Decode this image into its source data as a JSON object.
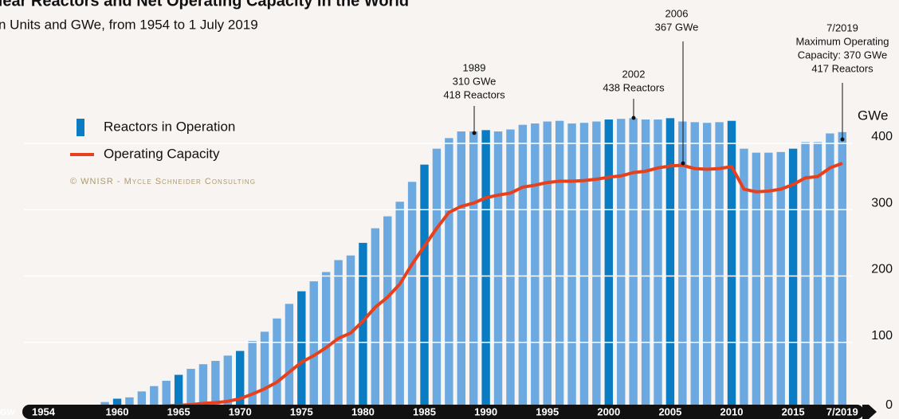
{
  "chart_data": {
    "type": "bar_line",
    "title": "Nuclear Reactors and Net Operating Capacity in the World",
    "subtitle": "n Units and GWe, from 1954 to 1 July 2019",
    "y_label": "GWe",
    "y_label_left": "GW",
    "copyright": "© WNISR - Mycle Schneider Consulting",
    "categories": [
      "1954",
      null,
      null,
      null,
      null,
      null,
      "1960",
      null,
      null,
      null,
      null,
      "1965",
      null,
      null,
      null,
      null,
      "1970",
      null,
      null,
      null,
      null,
      "1975",
      null,
      null,
      null,
      null,
      "1980",
      null,
      null,
      null,
      null,
      "1985",
      null,
      null,
      null,
      null,
      "1990",
      null,
      null,
      null,
      null,
      "1995",
      null,
      null,
      null,
      null,
      "2000",
      null,
      null,
      null,
      null,
      "2005",
      null,
      null,
      null,
      null,
      "2010",
      null,
      null,
      null,
      null,
      "2015",
      null,
      null,
      null,
      "7/2019"
    ],
    "series": [
      {
        "name": "Reactors in Operation",
        "color": "#6ca9e0",
        "colors": [
          "#6ca9e0",
          "#6ca9e0",
          "#6ca9e0",
          "#6ca9e0",
          "#6ca9e0",
          "#6ca9e0",
          "#0a7cc4",
          "#6ca9e0",
          "#6ca9e0",
          "#6ca9e0",
          "#6ca9e0",
          "#0a7cc4",
          "#6ca9e0",
          "#6ca9e0",
          "#6ca9e0",
          "#6ca9e0",
          "#0a7cc4",
          "#6ca9e0",
          "#6ca9e0",
          "#6ca9e0",
          "#6ca9e0",
          "#0a7cc4",
          "#6ca9e0",
          "#6ca9e0",
          "#6ca9e0",
          "#6ca9e0",
          "#0a7cc4",
          "#6ca9e0",
          "#6ca9e0",
          "#6ca9e0",
          "#6ca9e0",
          "#0a7cc4",
          "#6ca9e0",
          "#6ca9e0",
          "#6ca9e0",
          "#6ca9e0",
          "#0a7cc4",
          "#6ca9e0",
          "#6ca9e0",
          "#6ca9e0",
          "#6ca9e0",
          "#6ca9e0",
          "#6ca9e0",
          "#6ca9e0",
          "#6ca9e0",
          "#6ca9e0",
          "#0a7cc4",
          "#6ca9e0",
          "#6ca9e0",
          "#6ca9e0",
          "#6ca9e0",
          "#0a7cc4",
          "#6ca9e0",
          "#6ca9e0",
          "#6ca9e0",
          "#6ca9e0",
          "#0a7cc4",
          "#6ca9e0",
          "#6ca9e0",
          "#6ca9e0",
          "#6ca9e0",
          "#0a7cc4",
          "#6ca9e0",
          "#6ca9e0",
          "#6ca9e0",
          "#6ca9e0"
        ],
        "values": [
          1,
          1,
          2,
          4,
          6,
          10,
          15,
          17,
          26,
          34,
          42,
          51,
          60,
          67,
          72,
          80,
          87,
          102,
          116,
          136,
          158,
          177,
          192,
          206,
          224,
          231,
          250,
          272,
          290,
          312,
          342,
          368,
          392,
          408,
          418,
          418,
          420,
          418,
          421,
          428,
          430,
          433,
          434,
          430,
          431,
          433,
          436,
          437,
          438,
          436,
          436,
          438,
          433,
          432,
          431,
          432,
          434,
          392,
          386,
          386,
          387,
          392,
          402,
          402,
          415,
          417
        ]
      },
      {
        "name": "Operating Capacity",
        "color": "#e8401c",
        "values": [
          0,
          0,
          0,
          0,
          1,
          1,
          1,
          2,
          2,
          3,
          4,
          5,
          6,
          8,
          9,
          11,
          15,
          22,
          30,
          40,
          55,
          70,
          80,
          92,
          106,
          114,
          132,
          153,
          168,
          188,
          218,
          245,
          272,
          296,
          305,
          310,
          318,
          322,
          325,
          334,
          337,
          341,
          343,
          343,
          344,
          346,
          349,
          351,
          356,
          358,
          363,
          366,
          367,
          362,
          361,
          362,
          365,
          331,
          327,
          328,
          331,
          338,
          348,
          350,
          363,
          370
        ]
      }
    ],
    "annotations": [
      {
        "lines": [
          "1989",
          "310 GWe",
          "418 Reactors"
        ]
      },
      {
        "lines": [
          "2002",
          "438 Reactors"
        ]
      },
      {
        "lines": [
          "2006",
          "367 GWe"
        ]
      },
      {
        "lines": [
          "7/2019",
          "Maximum Operating",
          "Capacity: 370 GWe",
          "417 Reactors"
        ]
      }
    ],
    "ylim": [
      0,
      400
    ],
    "yticks": [
      0,
      100,
      200,
      300,
      400
    ],
    "grid": true
  }
}
